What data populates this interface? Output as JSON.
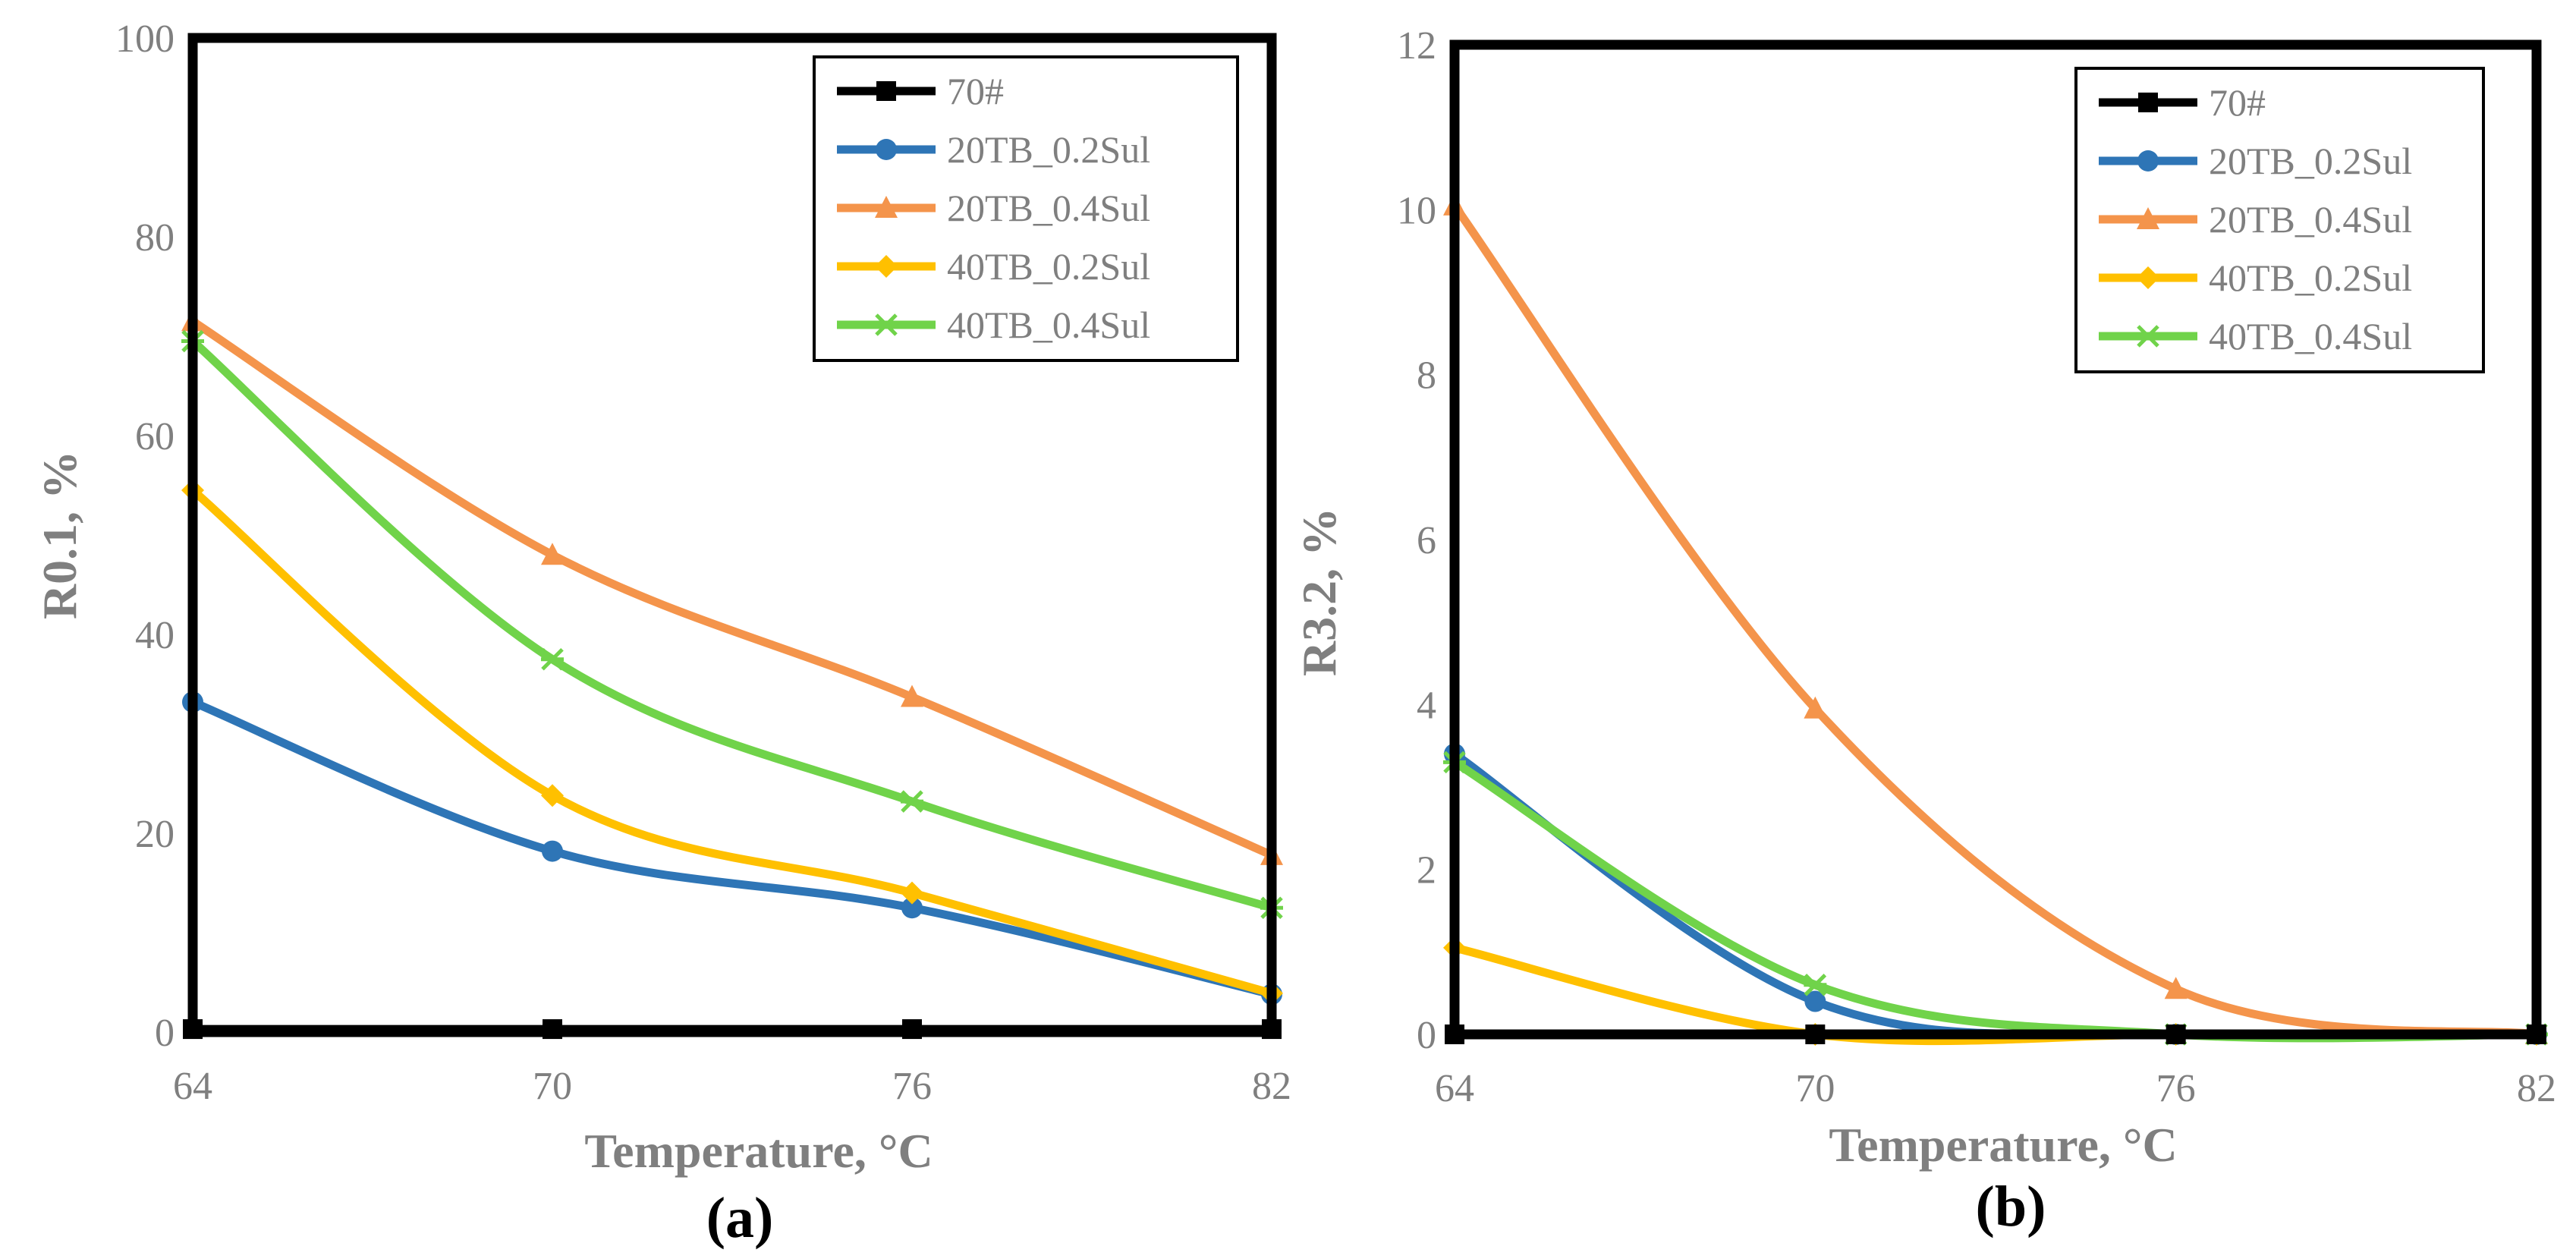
{
  "chart_data": [
    {
      "type": "line",
      "panel_label": "(a)",
      "xlabel": "Temperature, °C",
      "ylabel": "R0.1, %",
      "x": [
        64,
        70,
        76,
        82
      ],
      "xlim": [
        64,
        82
      ],
      "ylim": [
        0,
        100
      ],
      "xticks": [
        "64",
        "70",
        "76",
        "82"
      ],
      "yticks": [
        "0",
        "20",
        "40",
        "60",
        "80",
        "100"
      ],
      "grid": false,
      "legend": "top-right",
      "series": [
        {
          "name": "70#",
          "values": [
            0.3,
            0.3,
            0.3,
            0.3
          ],
          "color": "#000000",
          "marker": "square"
        },
        {
          "name": "20TB_0.2Sul",
          "values": [
            33.2,
            18.2,
            12.5,
            3.8
          ],
          "color": "#2e75b6",
          "marker": "circle"
        },
        {
          "name": "20TB_0.4Sul",
          "values": [
            71.5,
            48.0,
            33.7,
            17.8
          ],
          "color": "#f4944b",
          "marker": "triangle"
        },
        {
          "name": "40TB_0.2Sul",
          "values": [
            54.5,
            23.8,
            14.0,
            3.9
          ],
          "color": "#ffc000",
          "marker": "diamond"
        },
        {
          "name": "40TB_0.4Sul",
          "values": [
            69.5,
            37.5,
            23.2,
            12.5
          ],
          "color": "#70d34a",
          "marker": "star"
        }
      ]
    },
    {
      "type": "line",
      "panel_label": "(b)",
      "xlabel": "Temperature, °C",
      "ylabel": "R3.2, %",
      "x": [
        64,
        70,
        76,
        82
      ],
      "xlim": [
        64,
        82
      ],
      "ylim": [
        0,
        12
      ],
      "xticks": [
        "64",
        "70",
        "76",
        "82"
      ],
      "yticks": [
        "0",
        "2",
        "4",
        "6",
        "8",
        "10",
        "12"
      ],
      "grid": false,
      "legend": "top-right",
      "series": [
        {
          "name": "70#",
          "values": [
            0.0,
            0.0,
            0.0,
            0.0
          ],
          "color": "#000000",
          "marker": "square"
        },
        {
          "name": "20TB_0.2Sul",
          "values": [
            3.4,
            0.4,
            0.0,
            0.0
          ],
          "color": "#2e75b6",
          "marker": "circle"
        },
        {
          "name": "20TB_0.4Sul",
          "values": [
            10.05,
            3.95,
            0.55,
            0.0
          ],
          "color": "#f4944b",
          "marker": "triangle"
        },
        {
          "name": "40TB_0.2Sul",
          "values": [
            1.05,
            0.0,
            0.0,
            0.0
          ],
          "color": "#ffc000",
          "marker": "diamond"
        },
        {
          "name": "40TB_0.4Sul",
          "values": [
            3.3,
            0.6,
            0.0,
            0.0
          ],
          "color": "#70d34a",
          "marker": "star"
        }
      ]
    }
  ]
}
